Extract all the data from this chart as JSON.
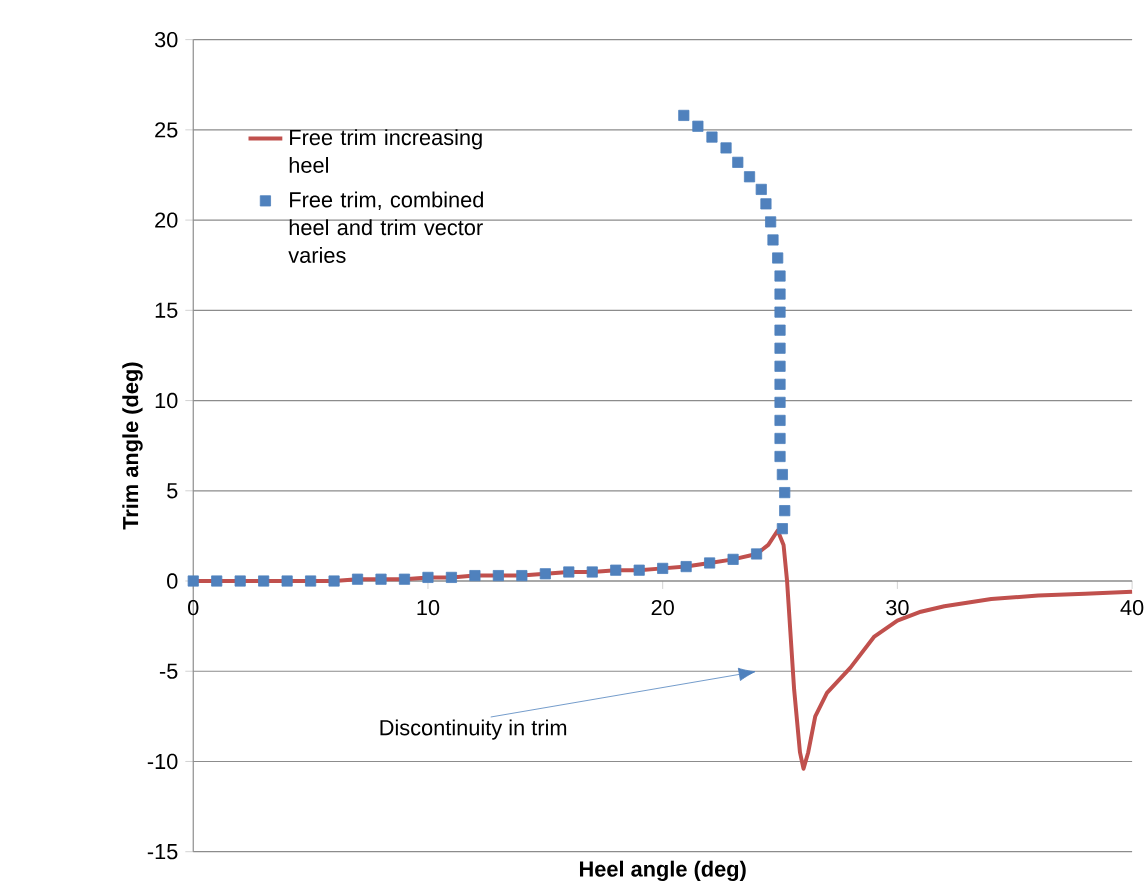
{
  "chart_data": {
    "type": "line",
    "xlabel": "Heel angle (deg)",
    "ylabel": "Trim angle (deg)",
    "xlim": [
      0,
      40
    ],
    "ylim": [
      -15,
      30
    ],
    "xticks": [
      0,
      10,
      20,
      30,
      40
    ],
    "yticks": [
      -15,
      -10,
      -5,
      0,
      5,
      10,
      15,
      20,
      25,
      30
    ],
    "grid": "y",
    "legend": "top left",
    "series": [
      {
        "name": "Free trim increasing heel",
        "color": "#c0504d",
        "marker": "none",
        "line_style": "solid",
        "x": [
          0,
          1,
          2,
          3,
          4,
          5,
          6,
          7,
          8,
          9,
          10,
          11,
          12,
          13,
          14,
          15,
          16,
          17,
          18,
          19,
          20,
          21,
          22,
          23,
          24,
          24.5,
          24.9,
          25.15,
          25.3,
          25.6,
          25.85,
          26.0,
          26.2,
          26.5,
          27,
          28,
          29,
          30,
          31,
          32,
          34,
          36,
          38,
          40
        ],
        "values": [
          0,
          0,
          0,
          0,
          0,
          0,
          0,
          0.1,
          0.1,
          0.1,
          0.2,
          0.2,
          0.3,
          0.3,
          0.3,
          0.4,
          0.5,
          0.5,
          0.6,
          0.6,
          0.7,
          0.8,
          1.0,
          1.2,
          1.5,
          2.0,
          2.8,
          2.0,
          0,
          -6,
          -9.5,
          -10.4,
          -9.5,
          -7.5,
          -6.2,
          -4.8,
          -3.1,
          -2.2,
          -1.7,
          -1.4,
          -1.0,
          -0.8,
          -0.7,
          -0.6
        ]
      },
      {
        "name": "Free trim, combined heel and trim vector varies",
        "type": "scatter",
        "color": "#4f81bd",
        "marker": "square",
        "x": [
          0,
          1,
          2,
          3,
          4,
          5,
          6,
          7,
          8,
          9,
          10,
          11,
          12,
          13,
          14,
          15,
          16,
          17,
          18,
          19,
          20,
          21,
          22,
          23,
          24,
          25.1,
          25.2,
          25.2,
          25.1,
          25.0,
          25.0,
          25.0,
          25.0,
          25.0,
          25.0,
          25.0,
          25.0,
          25.0,
          25.0,
          25.0,
          24.9,
          24.7,
          24.6,
          24.4,
          24.2,
          23.7,
          23.2,
          22.7,
          22.1,
          21.5,
          20.9
        ],
        "values": [
          0,
          0,
          0,
          0,
          0,
          0,
          0,
          0.1,
          0.1,
          0.1,
          0.2,
          0.2,
          0.3,
          0.3,
          0.3,
          0.4,
          0.5,
          0.5,
          0.6,
          0.6,
          0.7,
          0.8,
          1.0,
          1.2,
          1.5,
          2.9,
          3.9,
          4.9,
          5.9,
          6.9,
          7.9,
          8.9,
          9.9,
          10.9,
          11.9,
          12.9,
          13.9,
          14.9,
          15.9,
          16.9,
          17.9,
          18.9,
          19.9,
          20.9,
          21.7,
          22.4,
          23.2,
          24.0,
          24.6,
          25.2,
          25.8
        ]
      }
    ],
    "annotations": [
      "Discontinuity in trim"
    ]
  }
}
